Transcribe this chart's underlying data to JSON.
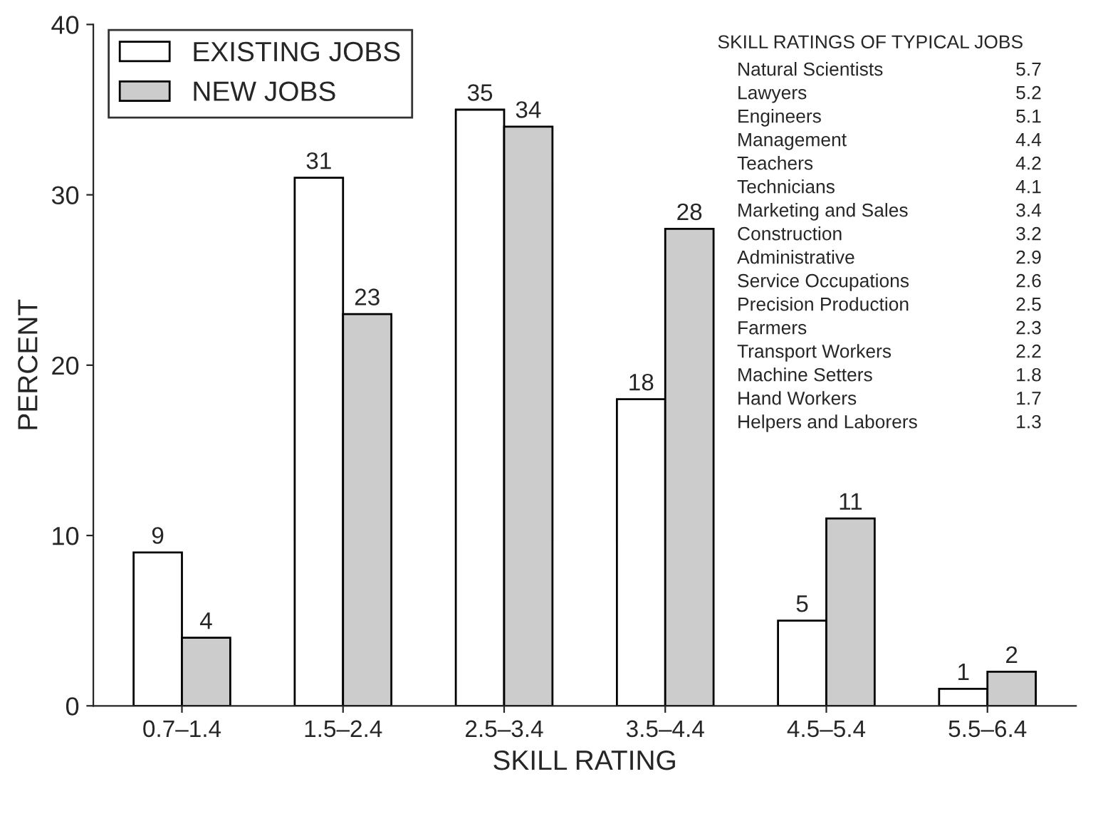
{
  "chart_data": {
    "type": "bar",
    "xlabel": "SKILL RATING",
    "ylabel": "PERCENT",
    "categories": [
      "0.7–1.4",
      "1.5–2.4",
      "2.5–3.4",
      "3.5–4.4",
      "4.5–5.4",
      "5.5–6.4"
    ],
    "series": [
      {
        "name": "EXISTING JOBS",
        "color": "#ffffff",
        "values": [
          9,
          31,
          35,
          18,
          5,
          1
        ]
      },
      {
        "name": "NEW JOBS",
        "color": "#cccccc",
        "values": [
          4,
          23,
          34,
          28,
          11,
          2
        ]
      }
    ],
    "ylim": [
      0,
      40
    ],
    "yticks": [
      0,
      10,
      20,
      30,
      40
    ],
    "data_labels": true,
    "legend": "top left",
    "grid": false,
    "annotations": [
      "SKILL RATINGS OF TYPICAL JOBS",
      "Natural Scientists",
      "5.7",
      "Lawyers",
      "5.2",
      "Engineers",
      "5.1",
      "Management",
      "4.4",
      "Teachers",
      "4.2",
      "Technicians",
      "4.1",
      "Marketing and Sales",
      "3.4",
      "Construction",
      "3.2",
      "Administrative",
      "2.9",
      "Service Occupations",
      "2.6",
      "Precision Production",
      "2.5",
      "Farmers",
      "2.3",
      "Transport Workers",
      "2.2",
      "Machine Setters",
      "1.8",
      "Hand Workers",
      "1.7",
      "Helpers and Laborers",
      "1.3"
    ]
  }
}
